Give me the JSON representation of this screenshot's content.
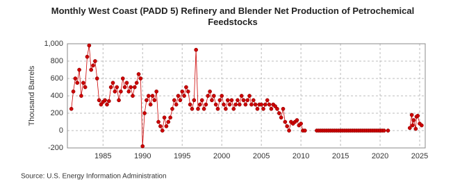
{
  "chart_data": {
    "type": "line",
    "title": "Monthly West Coast (PADD 5) Refinery and Blender Net Production of Petrochemical Feedstocks",
    "ylabel": "Thousand Barrels",
    "source": "Source: U.S. Energy Information Administration",
    "xlim": [
      1980.5,
      2025.7
    ],
    "xticks": [
      1985,
      1990,
      1995,
      2000,
      2005,
      2010,
      2015,
      2020,
      2025
    ],
    "ylim": [
      -200,
      1000
    ],
    "yticks": [
      -200,
      0,
      200,
      400,
      600,
      800,
      {
        "value": 1000,
        "label": "1,000"
      }
    ],
    "grid": true,
    "x": [
      1981,
      1981.25,
      1981.5,
      1981.75,
      1982,
      1982.25,
      1982.5,
      1982.75,
      1983,
      1983.25,
      1983.5,
      1983.75,
      1984,
      1984.25,
      1984.5,
      1984.75,
      1985,
      1985.25,
      1985.5,
      1985.75,
      1986,
      1986.25,
      1986.5,
      1986.75,
      1987,
      1987.25,
      1987.5,
      1987.75,
      1988,
      1988.25,
      1988.5,
      1988.75,
      1989,
      1989.25,
      1989.5,
      1989.75,
      1990,
      1990.25,
      1990.5,
      1990.75,
      1991,
      1991.25,
      1991.5,
      1991.75,
      1992,
      1992.25,
      1992.5,
      1992.75,
      1993,
      1993.25,
      1993.5,
      1993.75,
      1994,
      1994.25,
      1994.5,
      1994.75,
      1995,
      1995.25,
      1995.5,
      1995.75,
      1996,
      1996.25,
      1996.5,
      1996.75,
      1997,
      1997.25,
      1997.5,
      1997.75,
      1998,
      1998.25,
      1998.5,
      1998.75,
      1999,
      1999.25,
      1999.5,
      1999.75,
      2000,
      2000.25,
      2000.5,
      2000.75,
      2001,
      2001.25,
      2001.5,
      2001.75,
      2002,
      2002.25,
      2002.5,
      2002.75,
      2003,
      2003.25,
      2003.5,
      2003.75,
      2004,
      2004.25,
      2004.5,
      2004.75,
      2005,
      2005.25,
      2005.5,
      2005.75,
      2006,
      2006.25,
      2006.5,
      2006.75,
      2007,
      2007.25,
      2007.5,
      2007.75,
      2008,
      2008.25,
      2008.5,
      2008.75,
      2009,
      2009.25,
      2009.5,
      2009.75,
      2010,
      2010.25,
      2010.5,
      2011,
      2012,
      2012.25,
      2012.5,
      2012.75,
      2013,
      2013.25,
      2013.5,
      2013.75,
      2014,
      2014.25,
      2014.5,
      2014.75,
      2015,
      2015.25,
      2015.5,
      2015.75,
      2016,
      2016.25,
      2016.5,
      2016.75,
      2017,
      2017.25,
      2017.5,
      2017.75,
      2018,
      2018.25,
      2018.5,
      2018.75,
      2019,
      2019.25,
      2019.5,
      2019.75,
      2020,
      2020.25,
      2020.5,
      2020.75,
      2021,
      2022,
      2023.75,
      2024,
      2024.1,
      2024.25,
      2024.5,
      2024.6,
      2024.75,
      2025,
      2025.25
    ],
    "series": [
      {
        "name": "West Coast (PADD 5)",
        "color": "#cc0000",
        "values": [
          250,
          450,
          600,
          550,
          700,
          400,
          550,
          500,
          850,
          980,
          700,
          750,
          800,
          600,
          350,
          300,
          330,
          350,
          300,
          340,
          500,
          550,
          450,
          500,
          350,
          450,
          600,
          500,
          550,
          450,
          500,
          400,
          500,
          550,
          650,
          600,
          -180,
          200,
          350,
          400,
          300,
          400,
          350,
          450,
          100,
          50,
          0,
          150,
          50,
          100,
          150,
          250,
          350,
          300,
          400,
          350,
          450,
          400,
          500,
          450,
          300,
          250,
          350,
          930,
          250,
          300,
          350,
          250,
          300,
          400,
          450,
          350,
          400,
          300,
          250,
          350,
          400,
          300,
          250,
          350,
          300,
          350,
          250,
          300,
          350,
          300,
          400,
          350,
          300,
          350,
          400,
          300,
          350,
          300,
          250,
          300,
          300,
          250,
          300,
          350,
          300,
          250,
          300,
          280,
          250,
          200,
          150,
          250,
          100,
          50,
          0,
          100,
          80,
          100,
          120,
          60,
          80,
          0,
          0,
          null,
          0,
          0,
          0,
          0,
          0,
          0,
          0,
          0,
          0,
          0,
          0,
          0,
          0,
          0,
          0,
          0,
          0,
          0,
          0,
          0,
          0,
          0,
          0,
          0,
          0,
          0,
          0,
          0,
          0,
          0,
          0,
          0,
          0,
          0,
          0,
          null,
          0,
          null,
          30,
          180,
          60,
          120,
          20,
          160,
          170,
          80,
          60
        ]
      }
    ]
  }
}
